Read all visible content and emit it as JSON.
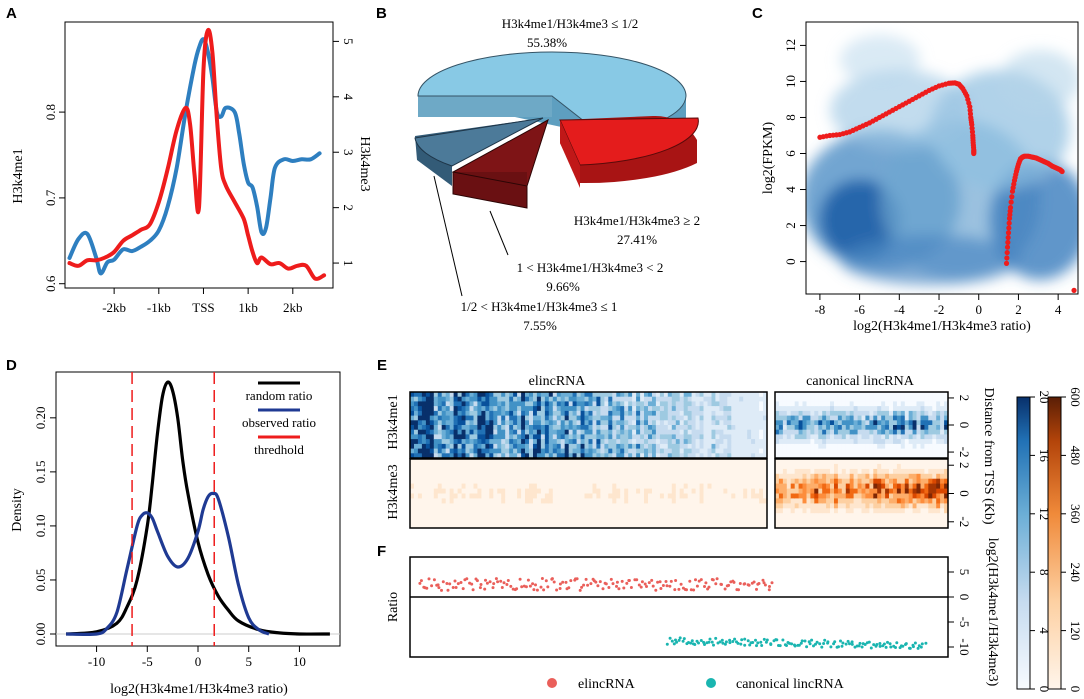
{
  "colors": {
    "blue": "#2e7fc0",
    "red": "#ee1c1c",
    "navy": "#1f3a93",
    "teal": "#1ab5b0",
    "salmon": "#ea5f5a",
    "pie_light_blue": "#88c9e5",
    "pie_steel": "#4c7a99",
    "pie_dark_red": "#7e1416",
    "pie_red": "#e41c1c"
  },
  "panels": {
    "A": "A",
    "B": "B",
    "C": "C",
    "D": "D",
    "E": "E",
    "F": "F"
  },
  "chart_data": [
    {
      "id": "A",
      "type": "line",
      "xlabel": "",
      "x_tick_labels": [
        "-2kb",
        "-1kb",
        "TSS",
        "1kb",
        "2kb"
      ],
      "x_tick_positions": [
        -2,
        -1,
        0,
        1,
        2
      ],
      "xlim": [
        -3.1,
        2.9
      ],
      "ylabel": "H3k4me1",
      "ylim": [
        0.595,
        0.905
      ],
      "y_ticks": [
        0.6,
        0.7,
        0.8
      ],
      "ylabel_right": "H3k4me3",
      "ylim_right": [
        0.55,
        5.35
      ],
      "y_ticks_right": [
        1,
        2,
        3,
        4,
        5
      ],
      "series": [
        {
          "name": "H3k4me1",
          "axis": "left",
          "x": [
            -3.0,
            -2.8,
            -2.6,
            -2.4,
            -2.3,
            -2.15,
            -2.0,
            -1.8,
            -1.6,
            -1.4,
            -1.2,
            -1.0,
            -0.8,
            -0.6,
            -0.4,
            -0.2,
            -0.1,
            0.0,
            0.1,
            0.2,
            0.3,
            0.4,
            0.5,
            0.7,
            0.8,
            0.9,
            1.0,
            1.1,
            1.2,
            1.3,
            1.4,
            1.5,
            1.6,
            1.8,
            2.0,
            2.2,
            2.4,
            2.6
          ],
          "values": [
            0.63,
            0.652,
            0.658,
            0.63,
            0.612,
            0.625,
            0.628,
            0.64,
            0.638,
            0.643,
            0.65,
            0.662,
            0.69,
            0.735,
            0.8,
            0.855,
            0.875,
            0.885,
            0.87,
            0.84,
            0.8,
            0.795,
            0.805,
            0.8,
            0.775,
            0.74,
            0.718,
            0.712,
            0.69,
            0.66,
            0.665,
            0.7,
            0.735,
            0.745,
            0.743,
            0.745,
            0.745,
            0.752
          ]
        },
        {
          "name": "H3k4me3",
          "axis": "right",
          "x": [
            -3.0,
            -2.8,
            -2.6,
            -2.4,
            -2.2,
            -2.0,
            -1.8,
            -1.6,
            -1.4,
            -1.2,
            -1.0,
            -0.8,
            -0.6,
            -0.4,
            -0.3,
            -0.2,
            -0.1,
            0.0,
            0.1,
            0.2,
            0.3,
            0.4,
            0.5,
            0.7,
            0.9,
            1.0,
            1.1,
            1.2,
            1.3,
            1.5,
            1.7,
            1.9,
            2.1,
            2.3,
            2.5,
            2.7
          ],
          "values": [
            1.0,
            0.95,
            1.05,
            1.05,
            1.1,
            1.2,
            1.4,
            1.5,
            1.6,
            1.7,
            2.1,
            2.7,
            3.4,
            3.8,
            3.5,
            2.6,
            2.0,
            4.5,
            5.2,
            4.8,
            3.6,
            2.7,
            2.4,
            2.1,
            1.8,
            1.5,
            1.2,
            1.0,
            1.1,
            0.98,
            1.0,
            0.9,
            0.95,
            0.95,
            0.72,
            0.78
          ]
        }
      ]
    },
    {
      "id": "B",
      "type": "pie",
      "title": "",
      "slices": [
        {
          "label": "H3k4me1/H3k4me3 ≤ 1/2",
          "value": 55.38,
          "pct_label": "55.38%",
          "color": "#88c9e5"
        },
        {
          "label": "H3k4me1/H3k4me3 ≥ 2",
          "value": 27.41,
          "pct_label": "27.41%",
          "color": "#e41c1c"
        },
        {
          "label": "1 < H3k4me1/H3k4me3 < 2",
          "value": 9.66,
          "pct_label": "9.66%",
          "color": "#7e1416"
        },
        {
          "label": "1/2 < H3k4me1/H3k4me3 ≤ 1",
          "value": 7.55,
          "pct_label": "7.55%",
          "color": "#4c7a99"
        }
      ]
    },
    {
      "id": "C",
      "type": "scatter",
      "xlabel": "log2(H3k4me1/H3k4me3 ratio)",
      "ylabel": "log2(FPKM)",
      "xlim": [
        -8.7,
        5.0
      ],
      "ylim": [
        -1.8,
        13.3
      ],
      "x_ticks": [
        -8,
        -6,
        -4,
        -2,
        0,
        2,
        4
      ],
      "y_ticks": [
        0,
        2,
        4,
        6,
        8,
        10,
        12
      ],
      "density_background": "blue smoothed scatter",
      "series": [
        {
          "name": "trend-left",
          "x": [
            -8.0,
            -7.5,
            -7.0,
            -6.5,
            -6.0,
            -5.5,
            -5.0,
            -4.5,
            -4.0,
            -3.5,
            -3.0,
            -2.5,
            -2.0,
            -1.5,
            -1.2,
            -1.0,
            -0.8,
            -0.6,
            -0.45,
            -0.4,
            -0.35,
            -0.3,
            -0.28,
            -0.25,
            -0.25
          ],
          "values": [
            6.9,
            7.0,
            7.05,
            7.2,
            7.45,
            7.7,
            8.0,
            8.3,
            8.6,
            8.9,
            9.2,
            9.5,
            9.75,
            9.9,
            9.92,
            9.85,
            9.6,
            9.2,
            8.6,
            8.0,
            7.6,
            7.0,
            6.6,
            6.2,
            6.0
          ]
        },
        {
          "name": "trend-right",
          "x": [
            1.4,
            1.45,
            1.5,
            1.55,
            1.6,
            1.7,
            1.8,
            1.9,
            2.0,
            2.1,
            2.2,
            2.3,
            2.5,
            2.7,
            2.9,
            3.1,
            3.3,
            3.5,
            3.7,
            3.9,
            4.1,
            4.2
          ],
          "values": [
            -0.1,
            0.8,
            1.6,
            2.4,
            3.0,
            3.9,
            4.5,
            5.0,
            5.4,
            5.7,
            5.8,
            5.85,
            5.85,
            5.8,
            5.75,
            5.65,
            5.55,
            5.45,
            5.3,
            5.2,
            5.1,
            5.0
          ]
        },
        {
          "name": "outlier",
          "x": [
            4.8
          ],
          "values": [
            -1.6
          ]
        }
      ]
    },
    {
      "id": "D",
      "type": "line",
      "xlabel": "log2(H3k4me1/H3k4me3 ratio)",
      "ylabel": "Density",
      "xlim": [
        -14,
        14
      ],
      "ylim": [
        0,
        0.235
      ],
      "x_ticks": [
        -10,
        -5,
        0,
        5,
        10
      ],
      "y_ticks": [
        0.0,
        0.05,
        0.1,
        0.15,
        0.2
      ],
      "y_tick_labels": [
        "0.00",
        "0.05",
        "0.10",
        "0.15",
        "0.20"
      ],
      "legend": [
        "random ratio",
        "observed ratio",
        "thredhold"
      ],
      "thresholds": [
        -6.5,
        1.6
      ],
      "series": [
        {
          "name": "random ratio",
          "x": [
            -13,
            -10,
            -8,
            -7,
            -6,
            -5,
            -4.5,
            -4,
            -3.5,
            -3,
            -2.5,
            -2,
            -1.5,
            -1,
            0,
            1,
            2,
            3,
            4,
            6,
            8,
            10,
            13
          ],
          "values": [
            0.0,
            0.002,
            0.01,
            0.025,
            0.05,
            0.1,
            0.14,
            0.185,
            0.22,
            0.233,
            0.225,
            0.2,
            0.16,
            0.13,
            0.085,
            0.055,
            0.035,
            0.022,
            0.012,
            0.004,
            0.001,
            0.0,
            0.0
          ]
        },
        {
          "name": "observed ratio",
          "x": [
            -13,
            -10,
            -9,
            -8,
            -7,
            -6,
            -5.5,
            -5,
            -4.5,
            -4,
            -3,
            -2,
            -1,
            0,
            0.5,
            1,
            1.5,
            2,
            3,
            4,
            5,
            6,
            7
          ],
          "values": [
            0.0,
            0.0,
            0.005,
            0.02,
            0.06,
            0.1,
            0.11,
            0.112,
            0.107,
            0.095,
            0.072,
            0.062,
            0.07,
            0.095,
            0.115,
            0.127,
            0.13,
            0.125,
            0.09,
            0.045,
            0.015,
            0.004,
            0.0
          ]
        }
      ]
    },
    {
      "id": "E",
      "type": "heatmap",
      "groups": [
        "elincRNA",
        "canonical lincRNA"
      ],
      "rows": [
        "H3k4me1",
        "H3k4me3"
      ],
      "y_ticks": [
        2,
        0,
        -2
      ],
      "y_label_right": "Distance from TSS (Kb)",
      "colorbar_blue": {
        "ticks": [
          0,
          4,
          8,
          12,
          16,
          20
        ]
      },
      "colorbar_orange": {
        "ticks": [
          0,
          120,
          240,
          360,
          480,
          600
        ]
      }
    },
    {
      "id": "F",
      "type": "scatter",
      "ylabel": "Ratio",
      "ylabel_right": "log2(H3k4me1/H3k4me3)",
      "ylim": [
        -12,
        8
      ],
      "y_ticks": [
        5,
        0,
        -5,
        -10
      ],
      "legend": [
        "elincRNA",
        "canonical lincRNA"
      ],
      "series": [
        {
          "name": "elincRNA",
          "index_range": [
            0,
            0.7
          ],
          "mean": 2.5,
          "spread": 1.2
        },
        {
          "name": "canonical lincRNA",
          "index_range": [
            0.49,
            1.0
          ],
          "mean": -8.8,
          "spread": 0.7
        }
      ]
    }
  ]
}
